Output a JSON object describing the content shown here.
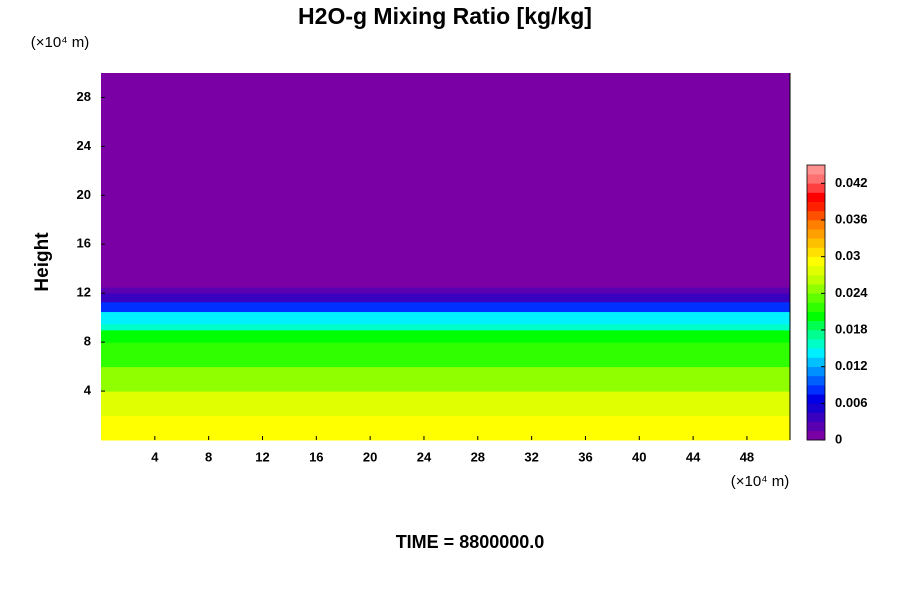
{
  "chart_data": {
    "type": "heatmap",
    "title": "H2O-g Mixing Ratio [kg/kg]",
    "y_label": "Height",
    "y_unit": "(×10⁴ m)",
    "x_unit": "(×10⁴ m)",
    "footer": "TIME = 8800000.0",
    "xlim": [
      0,
      51.2
    ],
    "xticks": [
      4,
      8,
      12,
      16,
      20,
      24,
      28,
      32,
      36,
      40,
      44,
      48
    ],
    "ylim": [
      0,
      30
    ],
    "yticks": [
      4,
      8,
      12,
      16,
      20,
      24,
      28
    ],
    "y": [
      0,
      2,
      4,
      6,
      8,
      9,
      9.5,
      10.5,
      11.3,
      12,
      12.5,
      30
    ],
    "values": [
      0.029,
      0.027,
      0.025,
      0.022,
      0.02,
      0.016,
      0.0135,
      0.009,
      0.004,
      0.002,
      0.0002,
      0
    ],
    "clim": [
      0,
      0.045
    ],
    "cticks": [
      0,
      0.006,
      0.012,
      0.018,
      0.024,
      0.03,
      0.036,
      0.042
    ],
    "colors": [
      "#7a00a6",
      "#5a00b0",
      "#3a00c0",
      "#1800d0",
      "#0000e6",
      "#0030ff",
      "#0060ff",
      "#0090ff",
      "#00c0ff",
      "#00f0ff",
      "#00ffc8",
      "#00ff90",
      "#00ff50",
      "#00ff00",
      "#30ff00",
      "#60ff00",
      "#90ff00",
      "#c0ff00",
      "#e0ff00",
      "#ffff00",
      "#ffe000",
      "#ffc000",
      "#ffa000",
      "#ff8000",
      "#ff5000",
      "#ff2000",
      "#ff0000",
      "#ff4040",
      "#ff7070",
      "#ff9090"
    ]
  }
}
